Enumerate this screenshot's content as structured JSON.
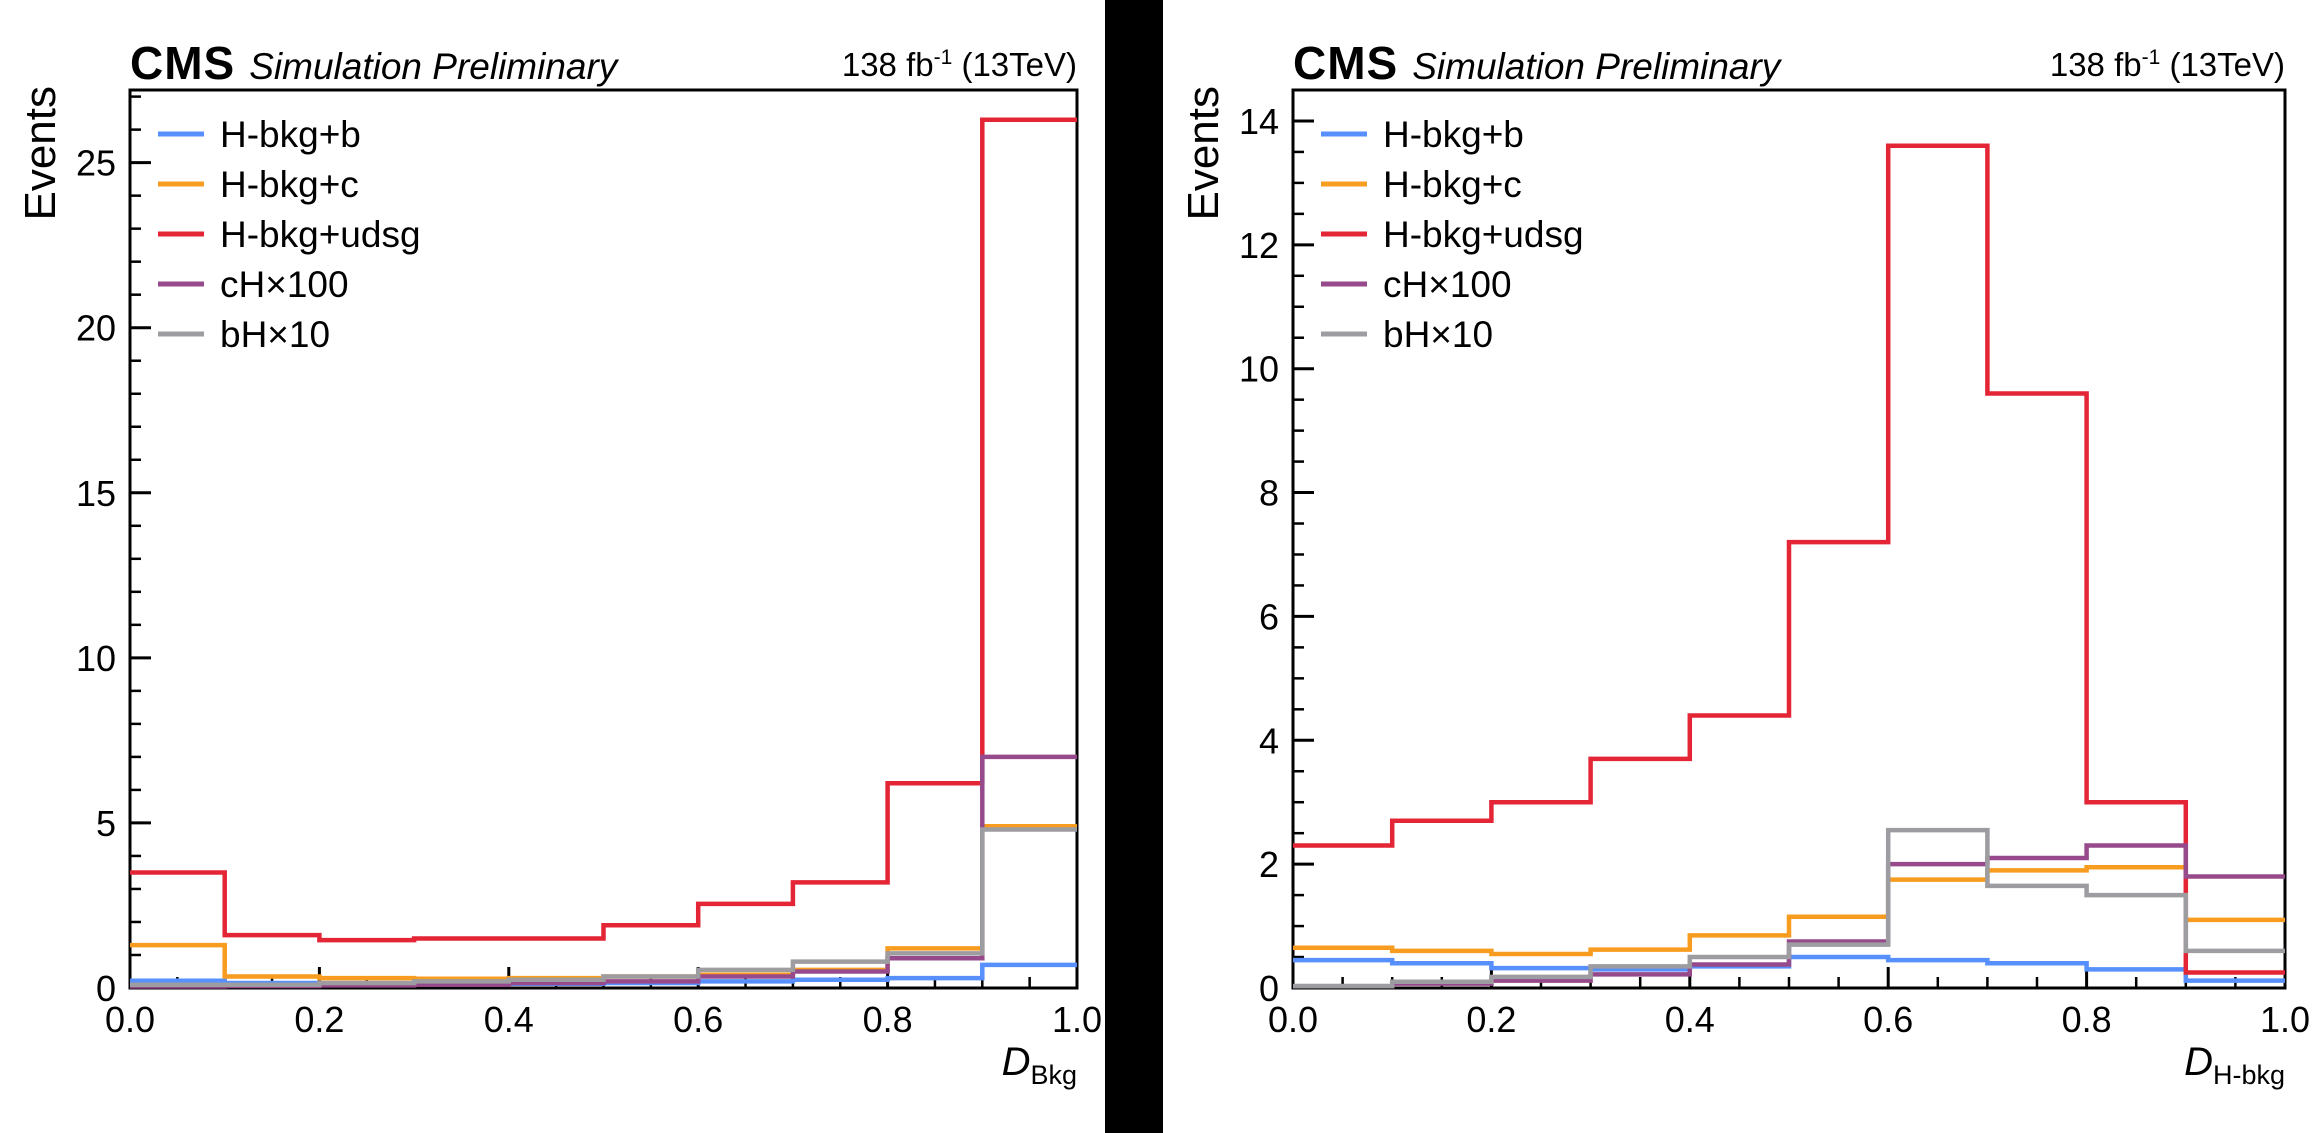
{
  "page": {
    "background": "#ffffff",
    "divider_color": "#000000"
  },
  "panels": [
    {
      "header": {
        "cms": "CMS",
        "subtitle": "Simulation Preliminary",
        "lumi_prefix": "138 fb",
        "lumi_sup": "-1",
        "lumi_suffix": " (13TeV)"
      },
      "ylabel": "Events",
      "xlabel_main": "D",
      "xlabel_sub": "Bkg"
    },
    {
      "header": {
        "cms": "CMS",
        "subtitle": "Simulation Preliminary",
        "lumi_prefix": "138 fb",
        "lumi_sup": "-1",
        "lumi_suffix": " (13TeV)"
      },
      "ylabel": "Events",
      "xlabel_main": "D",
      "xlabel_sub": "H-bkg"
    }
  ],
  "chart_data": [
    {
      "type": "step-histogram",
      "title": "CMS Simulation Preliminary",
      "lumi_label": "138 fb-1 (13TeV)",
      "xlabel": "D_Bkg",
      "ylabel": "Events",
      "xlim": [
        0.0,
        1.0
      ],
      "ylim": [
        0.0,
        27.2
      ],
      "xticks": [
        0.0,
        0.2,
        0.4,
        0.6,
        0.8,
        1.0
      ],
      "xtick_labels": [
        "0.0",
        "0.2",
        "0.4",
        "0.6",
        "0.8",
        "1.0"
      ],
      "yticks": [
        0,
        5,
        10,
        15,
        20,
        25
      ],
      "ytick_labels": [
        "0",
        "5",
        "10",
        "15",
        "20",
        "25"
      ],
      "x_minor_step": 0.05,
      "y_minor_step": 1,
      "grid": false,
      "legend_position": "top-left",
      "bin_edges": [
        0.0,
        0.1,
        0.2,
        0.3,
        0.4,
        0.5,
        0.6,
        0.7,
        0.8,
        0.9,
        1.0
      ],
      "series": [
        {
          "name": "H-bkg+b",
          "color": "#5790fc",
          "values": [
            0.22,
            0.15,
            0.12,
            0.12,
            0.13,
            0.15,
            0.2,
            0.25,
            0.3,
            0.7
          ]
        },
        {
          "name": "H-bkg+c",
          "color": "#f89c20",
          "values": [
            1.3,
            0.35,
            0.3,
            0.28,
            0.3,
            0.35,
            0.4,
            0.55,
            1.2,
            4.9
          ]
        },
        {
          "name": "H-bkg+udsg",
          "color": "#e42536",
          "values": [
            3.5,
            1.6,
            1.45,
            1.5,
            1.5,
            1.9,
            2.55,
            3.2,
            6.2,
            26.3
          ]
        },
        {
          "name": "cH×100",
          "color": "#964a8b",
          "values": [
            0.05,
            0.06,
            0.08,
            0.1,
            0.15,
            0.2,
            0.35,
            0.5,
            0.9,
            7.0
          ]
        },
        {
          "name": "bH×10",
          "color": "#9c9ca1",
          "values": [
            0.1,
            0.1,
            0.15,
            0.2,
            0.25,
            0.35,
            0.55,
            0.8,
            1.05,
            4.8
          ]
        }
      ]
    },
    {
      "type": "step-histogram",
      "title": "CMS Simulation Preliminary",
      "lumi_label": "138 fb-1 (13TeV)",
      "xlabel": "D_H-bkg",
      "ylabel": "Events",
      "xlim": [
        0.0,
        1.0
      ],
      "ylim": [
        0.0,
        14.5
      ],
      "xticks": [
        0.0,
        0.2,
        0.4,
        0.6,
        0.8,
        1.0
      ],
      "xtick_labels": [
        "0.0",
        "0.2",
        "0.4",
        "0.6",
        "0.8",
        "1.0"
      ],
      "yticks": [
        0,
        2,
        4,
        6,
        8,
        10,
        12,
        14
      ],
      "ytick_labels": [
        "0",
        "2",
        "4",
        "6",
        "8",
        "10",
        "12",
        "14"
      ],
      "x_minor_step": 0.05,
      "y_minor_step": 0.5,
      "grid": false,
      "legend_position": "top-left",
      "bin_edges": [
        0.0,
        0.1,
        0.2,
        0.3,
        0.4,
        0.5,
        0.6,
        0.7,
        0.8,
        0.9,
        1.0
      ],
      "series": [
        {
          "name": "H-bkg+b",
          "color": "#5790fc",
          "values": [
            0.45,
            0.4,
            0.32,
            0.3,
            0.35,
            0.5,
            0.45,
            0.4,
            0.3,
            0.12
          ]
        },
        {
          "name": "H-bkg+c",
          "color": "#f89c20",
          "values": [
            0.65,
            0.6,
            0.55,
            0.62,
            0.85,
            1.15,
            1.75,
            1.9,
            1.95,
            1.1
          ]
        },
        {
          "name": "H-bkg+udsg",
          "color": "#e42536",
          "values": [
            2.3,
            2.7,
            3.0,
            3.7,
            4.4,
            7.2,
            13.6,
            9.6,
            3.0,
            0.25
          ]
        },
        {
          "name": "cH×100",
          "color": "#964a8b",
          "values": [
            0.03,
            0.07,
            0.12,
            0.22,
            0.38,
            0.75,
            2.0,
            2.1,
            2.3,
            1.8
          ]
        },
        {
          "name": "bH×10",
          "color": "#9c9ca1",
          "values": [
            0.03,
            0.1,
            0.18,
            0.35,
            0.5,
            0.7,
            2.55,
            1.65,
            1.5,
            0.6
          ]
        }
      ]
    }
  ]
}
